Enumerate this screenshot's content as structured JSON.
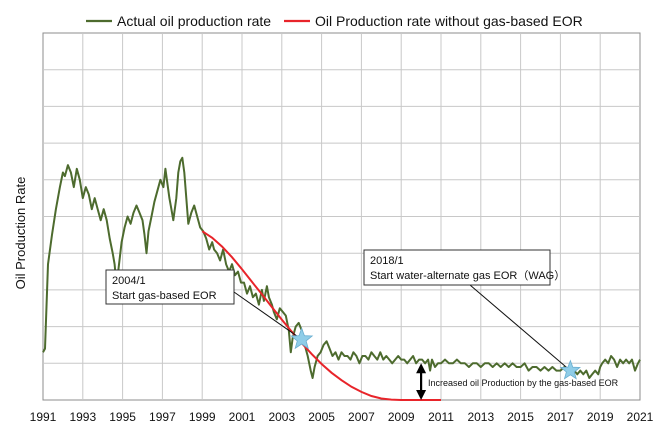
{
  "chart_data": {
    "type": "line",
    "title": "",
    "ylabel": "Oil Production Rate",
    "xlabel": "",
    "xlim": [
      1991,
      2021
    ],
    "ylim": [
      0,
      100
    ],
    "x_ticks": [
      "1991",
      "1993",
      "1995",
      "1997",
      "1999",
      "2001",
      "2003",
      "2005",
      "2007",
      "2009",
      "2011",
      "2013",
      "2015",
      "2017",
      "2019",
      "2021"
    ],
    "y_gridlines": [
      10,
      20,
      30,
      40,
      50,
      60,
      70,
      80,
      90
    ],
    "grid": true,
    "legend_position": "top",
    "series": [
      {
        "name": "Actual oil production rate",
        "color": "#4d6b2e",
        "points": [
          [
            1991.0,
            13
          ],
          [
            1991.1,
            14
          ],
          [
            1991.25,
            37
          ],
          [
            1991.45,
            45
          ],
          [
            1991.65,
            52
          ],
          [
            1991.85,
            58
          ],
          [
            1992.0,
            62
          ],
          [
            1992.1,
            61
          ],
          [
            1992.25,
            64
          ],
          [
            1992.4,
            62
          ],
          [
            1992.55,
            58
          ],
          [
            1992.7,
            63
          ],
          [
            1992.85,
            60
          ],
          [
            1993.0,
            55
          ],
          [
            1993.15,
            58
          ],
          [
            1993.3,
            56
          ],
          [
            1993.45,
            52
          ],
          [
            1993.6,
            55
          ],
          [
            1993.75,
            52
          ],
          [
            1993.9,
            49
          ],
          [
            1994.05,
            52
          ],
          [
            1994.2,
            49
          ],
          [
            1994.35,
            44
          ],
          [
            1994.5,
            40
          ],
          [
            1994.6,
            37
          ],
          [
            1994.7,
            31
          ],
          [
            1994.8,
            36
          ],
          [
            1994.95,
            43
          ],
          [
            1995.1,
            47
          ],
          [
            1995.25,
            50
          ],
          [
            1995.4,
            48
          ],
          [
            1995.55,
            51
          ],
          [
            1995.7,
            53
          ],
          [
            1995.85,
            51
          ],
          [
            1996.0,
            49
          ],
          [
            1996.1,
            45
          ],
          [
            1996.2,
            40
          ],
          [
            1996.3,
            46
          ],
          [
            1996.45,
            50
          ],
          [
            1996.6,
            54
          ],
          [
            1996.75,
            57
          ],
          [
            1996.9,
            60
          ],
          [
            1997.05,
            58
          ],
          [
            1997.15,
            63
          ],
          [
            1997.25,
            59
          ],
          [
            1997.35,
            55
          ],
          [
            1997.45,
            52
          ],
          [
            1997.55,
            49
          ],
          [
            1997.7,
            55
          ],
          [
            1997.8,
            62
          ],
          [
            1997.9,
            65
          ],
          [
            1998.0,
            66
          ],
          [
            1998.1,
            62
          ],
          [
            1998.2,
            55
          ],
          [
            1998.3,
            48
          ],
          [
            1998.45,
            51
          ],
          [
            1998.6,
            53
          ],
          [
            1998.75,
            50
          ],
          [
            1998.9,
            47
          ],
          [
            1999.05,
            46
          ],
          [
            1999.2,
            44
          ],
          [
            1999.35,
            41
          ],
          [
            1999.5,
            43
          ],
          [
            1999.6,
            41
          ],
          [
            1999.75,
            40
          ],
          [
            1999.9,
            38
          ],
          [
            2000.05,
            41
          ],
          [
            2000.2,
            37
          ],
          [
            2000.35,
            35
          ],
          [
            2000.5,
            37
          ],
          [
            2000.65,
            34
          ],
          [
            2000.8,
            35
          ],
          [
            2000.95,
            32
          ],
          [
            2001.1,
            32
          ],
          [
            2001.25,
            29
          ],
          [
            2001.4,
            31
          ],
          [
            2001.55,
            28
          ],
          [
            2001.7,
            29
          ],
          [
            2001.85,
            26
          ],
          [
            2002.0,
            30
          ],
          [
            2002.1,
            27
          ],
          [
            2002.25,
            31
          ],
          [
            2002.35,
            28
          ],
          [
            2002.5,
            26
          ],
          [
            2002.6,
            24
          ],
          [
            2002.75,
            22
          ],
          [
            2002.9,
            25
          ],
          [
            2003.05,
            24
          ],
          [
            2003.2,
            23
          ],
          [
            2003.35,
            19
          ],
          [
            2003.45,
            13
          ],
          [
            2003.55,
            17
          ],
          [
            2003.7,
            20
          ],
          [
            2003.85,
            21
          ],
          [
            2004.0,
            19
          ],
          [
            2004.15,
            15
          ],
          [
            2004.3,
            12
          ],
          [
            2004.45,
            8
          ],
          [
            2004.55,
            6
          ],
          [
            2004.65,
            9
          ],
          [
            2004.8,
            12
          ],
          [
            2004.95,
            13
          ],
          [
            2005.1,
            15
          ],
          [
            2005.25,
            16
          ],
          [
            2005.4,
            14
          ],
          [
            2005.55,
            12
          ],
          [
            2005.7,
            13
          ],
          [
            2005.85,
            11
          ],
          [
            2006.0,
            13
          ],
          [
            2006.15,
            12
          ],
          [
            2006.3,
            12
          ],
          [
            2006.45,
            11
          ],
          [
            2006.6,
            13
          ],
          [
            2006.75,
            12
          ],
          [
            2006.9,
            10
          ],
          [
            2007.05,
            12
          ],
          [
            2007.2,
            12
          ],
          [
            2007.35,
            11
          ],
          [
            2007.5,
            13
          ],
          [
            2007.65,
            12
          ],
          [
            2007.8,
            11
          ],
          [
            2007.95,
            13
          ],
          [
            2008.1,
            11
          ],
          [
            2008.25,
            12
          ],
          [
            2008.4,
            11
          ],
          [
            2008.55,
            10
          ],
          [
            2008.7,
            11
          ],
          [
            2008.85,
            12
          ],
          [
            2009.0,
            11
          ],
          [
            2009.15,
            11
          ],
          [
            2009.3,
            10
          ],
          [
            2009.45,
            11
          ],
          [
            2009.6,
            12
          ],
          [
            2009.75,
            10
          ],
          [
            2009.9,
            11
          ],
          [
            2010.05,
            11
          ],
          [
            2010.2,
            10
          ],
          [
            2010.35,
            11
          ],
          [
            2010.45,
            8
          ],
          [
            2010.55,
            11
          ],
          [
            2010.7,
            9
          ],
          [
            2010.85,
            10
          ],
          [
            2011.0,
            10
          ],
          [
            2011.2,
            11
          ],
          [
            2011.4,
            10
          ],
          [
            2011.6,
            10
          ],
          [
            2011.8,
            11
          ],
          [
            2012.0,
            10
          ],
          [
            2012.2,
            10
          ],
          [
            2012.4,
            9
          ],
          [
            2012.6,
            10
          ],
          [
            2012.8,
            10
          ],
          [
            2013.0,
            9
          ],
          [
            2013.2,
            10
          ],
          [
            2013.4,
            10
          ],
          [
            2013.6,
            9
          ],
          [
            2013.8,
            10
          ],
          [
            2014.0,
            9
          ],
          [
            2014.2,
            10
          ],
          [
            2014.4,
            9
          ],
          [
            2014.6,
            10
          ],
          [
            2014.8,
            9
          ],
          [
            2015.0,
            9
          ],
          [
            2015.2,
            10
          ],
          [
            2015.4,
            8
          ],
          [
            2015.6,
            9
          ],
          [
            2015.8,
            9
          ],
          [
            2016.0,
            8
          ],
          [
            2016.2,
            9
          ],
          [
            2016.4,
            8
          ],
          [
            2016.6,
            9
          ],
          [
            2016.8,
            8
          ],
          [
            2017.0,
            8
          ],
          [
            2017.2,
            9
          ],
          [
            2017.4,
            8
          ],
          [
            2017.55,
            9
          ],
          [
            2017.7,
            8
          ],
          [
            2017.85,
            7
          ],
          [
            2018.0,
            8
          ],
          [
            2018.15,
            7
          ],
          [
            2018.3,
            8
          ],
          [
            2018.45,
            6
          ],
          [
            2018.6,
            7
          ],
          [
            2018.75,
            8
          ],
          [
            2018.9,
            7
          ],
          [
            2019.0,
            9
          ],
          [
            2019.1,
            10
          ],
          [
            2019.25,
            11
          ],
          [
            2019.4,
            10
          ],
          [
            2019.55,
            12
          ],
          [
            2019.7,
            11
          ],
          [
            2019.85,
            9
          ],
          [
            2020.0,
            11
          ],
          [
            2020.15,
            10
          ],
          [
            2020.3,
            11
          ],
          [
            2020.45,
            10
          ],
          [
            2020.6,
            11
          ],
          [
            2020.75,
            8
          ],
          [
            2020.9,
            10
          ],
          [
            2021.0,
            11
          ]
        ]
      },
      {
        "name": "Oil Production rate without gas-based EOR",
        "color": "#e8242a",
        "points": [
          [
            1999.0,
            46
          ],
          [
            1999.5,
            44.2
          ],
          [
            2000.0,
            41.8
          ],
          [
            2000.5,
            38.9
          ],
          [
            2001.0,
            35.6
          ],
          [
            2001.5,
            32.2
          ],
          [
            2002.0,
            28.8
          ],
          [
            2002.5,
            25.3
          ],
          [
            2003.0,
            21.9
          ],
          [
            2003.5,
            18.6
          ],
          [
            2004.0,
            15.5
          ],
          [
            2004.5,
            12.5
          ],
          [
            2005.0,
            9.8
          ],
          [
            2005.5,
            7.4
          ],
          [
            2006.0,
            5.4
          ],
          [
            2006.5,
            3.6
          ],
          [
            2007.0,
            2.2
          ],
          [
            2007.5,
            1.1
          ],
          [
            2008.0,
            0.4
          ],
          [
            2008.5,
            0.1
          ],
          [
            2009.0,
            0
          ],
          [
            2009.5,
            0
          ],
          [
            2010.0,
            0
          ],
          [
            2010.5,
            0
          ],
          [
            2011.0,
            0
          ]
        ]
      }
    ],
    "markers": [
      {
        "name": "2004/1",
        "x": 2004.0,
        "y": 16.5,
        "symbol": "star",
        "color": "#8fcde8"
      },
      {
        "name": "2018/1",
        "x": 2017.5,
        "y": 8.0,
        "symbol": "star",
        "color": "#8fcde8"
      }
    ],
    "annotations": [
      {
        "id": "eor_start",
        "lines": [
          "2004/1",
          "Start gas-based EOR"
        ],
        "points_to": 2004.0
      },
      {
        "id": "wag_start",
        "lines": [
          "2018/1",
          "Start water-alternate gas EOR（WAG）"
        ],
        "points_to": 2017.5
      },
      {
        "id": "increase",
        "text": "Increased oil Production by the gas-based EOR",
        "x": 2010.0,
        "y_from": 0,
        "y_to": 10
      }
    ]
  }
}
